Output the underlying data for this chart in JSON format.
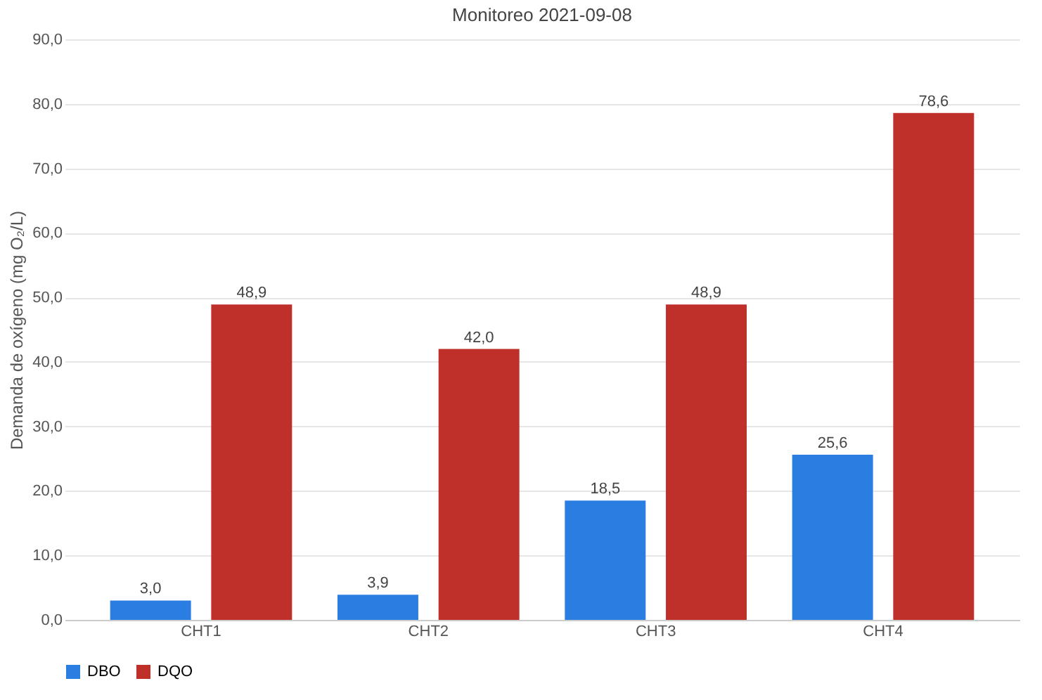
{
  "chart_data": {
    "type": "bar",
    "title": "Monitoreo 2021-09-08",
    "ylabel": "Demanda de oxígeno (mg O₂/L)",
    "categories": [
      "CHT1",
      "CHT2",
      "CHT3",
      "CHT4"
    ],
    "series": [
      {
        "name": "DBO",
        "color": "#2a7de1",
        "values": [
          3.0,
          3.9,
          18.5,
          25.6
        ],
        "value_labels": [
          "3,0",
          "3,9",
          "18,5",
          "25,6"
        ]
      },
      {
        "name": "DQO",
        "color": "#c0302b",
        "values": [
          48.9,
          42.0,
          48.9,
          78.6
        ],
        "value_labels": [
          "48,9",
          "42,0",
          "48,9",
          "78,6"
        ]
      }
    ],
    "ylim": [
      0,
      90
    ],
    "yticks": [
      {
        "value": 0,
        "label": "0,0"
      },
      {
        "value": 10,
        "label": "10,0"
      },
      {
        "value": 20,
        "label": "20,0"
      },
      {
        "value": 30,
        "label": "30,0"
      },
      {
        "value": 40,
        "label": "40,0"
      },
      {
        "value": 50,
        "label": "50,0"
      },
      {
        "value": 60,
        "label": "60,0"
      },
      {
        "value": 70,
        "label": "70,0"
      },
      {
        "value": 80,
        "label": "80,0"
      },
      {
        "value": 90,
        "label": "90,0"
      }
    ],
    "grid": "y",
    "legend": "bottom"
  }
}
